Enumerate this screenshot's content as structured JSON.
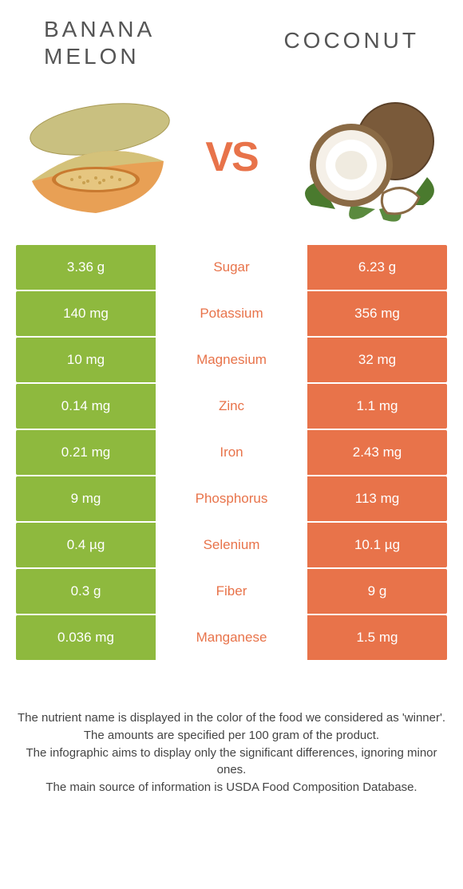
{
  "colors": {
    "left": "#8eb93e",
    "right": "#e8734a",
    "vs": "#e8734a",
    "text": "#555555",
    "cell_text": "#ffffff"
  },
  "header": {
    "left_title": "Banana melon",
    "right_title": "Coconut",
    "vs_label": "VS"
  },
  "table": {
    "rows": [
      {
        "nutrient": "Sugar",
        "left": "3.36 g",
        "right": "6.23 g",
        "winner": "right"
      },
      {
        "nutrient": "Potassium",
        "left": "140 mg",
        "right": "356 mg",
        "winner": "right"
      },
      {
        "nutrient": "Magnesium",
        "left": "10 mg",
        "right": "32 mg",
        "winner": "right"
      },
      {
        "nutrient": "Zinc",
        "left": "0.14 mg",
        "right": "1.1 mg",
        "winner": "right"
      },
      {
        "nutrient": "Iron",
        "left": "0.21 mg",
        "right": "2.43 mg",
        "winner": "right"
      },
      {
        "nutrient": "Phosphorus",
        "left": "9 mg",
        "right": "113 mg",
        "winner": "right"
      },
      {
        "nutrient": "Selenium",
        "left": "0.4 µg",
        "right": "10.1 µg",
        "winner": "right"
      },
      {
        "nutrient": "Fiber",
        "left": "0.3 g",
        "right": "9 g",
        "winner": "right"
      },
      {
        "nutrient": "Manganese",
        "left": "0.036 mg",
        "right": "1.5 mg",
        "winner": "right"
      }
    ]
  },
  "footnotes": [
    "The nutrient name is displayed in the color of the food we considered as 'winner'.",
    "The amounts are specified per 100 gram of the product.",
    "The infographic aims to display only the significant differences, ignoring minor ones.",
    "The main source of information is USDA Food Composition Database."
  ]
}
